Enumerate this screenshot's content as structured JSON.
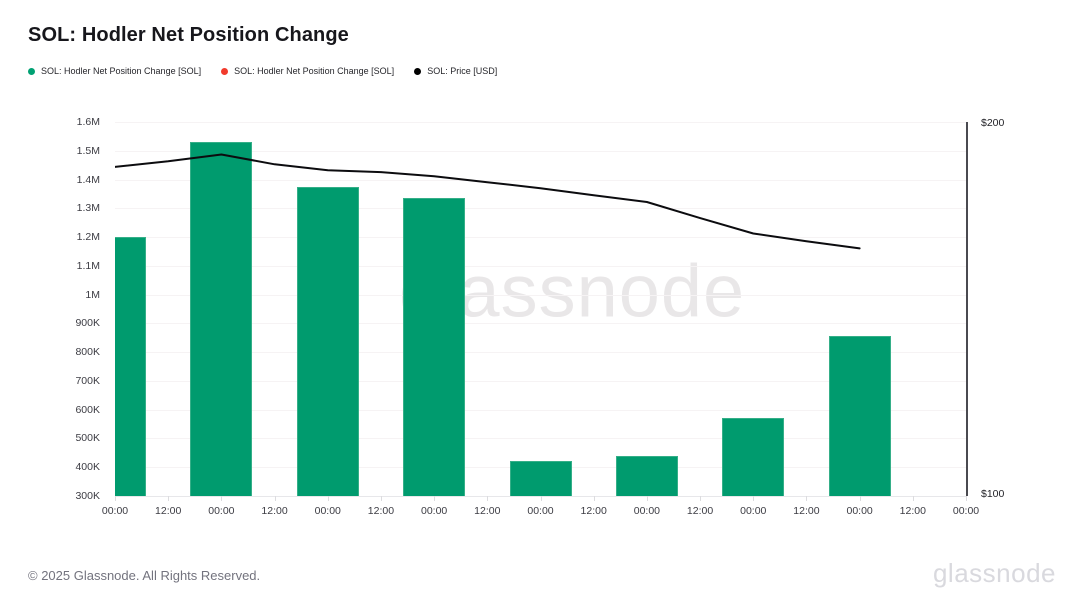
{
  "header": {
    "title": "SOL: Hodler Net Position Change"
  },
  "legend": [
    {
      "label": "SOL: Hodler Net Position Change [SOL]",
      "color": "#00a173",
      "shape": "dot"
    },
    {
      "label": "SOL: Hodler Net Position Change [SOL]",
      "color": "#f13a2c",
      "shape": "dot"
    },
    {
      "label": "SOL: Price [USD]",
      "color": "#000000",
      "shape": "dot"
    }
  ],
  "watermark": "glassnode",
  "chart_data": {
    "type": "bar",
    "title": "SOL: Hodler Net Position Change",
    "x_tick_labels": [
      "00:00",
      "12:00",
      "00:00",
      "12:00",
      "00:00",
      "12:00",
      "00:00",
      "12:00",
      "00:00",
      "12:00",
      "00:00",
      "12:00",
      "00:00",
      "12:00",
      "00:00",
      "12:00",
      "00:00"
    ],
    "left_axis": {
      "tick_labels": [
        "1.6M",
        "1.5M",
        "1.4M",
        "1.3M",
        "1.2M",
        "1.1M",
        "1M",
        "900K",
        "800K",
        "700K",
        "600K",
        "500K",
        "400K",
        "300K"
      ],
      "min": 300000,
      "max": 1600000,
      "grid": true
    },
    "right_axis": {
      "tick_labels": [
        "$200",
        "$100"
      ],
      "min": 100,
      "max": 200,
      "grid": false
    },
    "series": [
      {
        "name": "SOL: Hodler Net Position Change [SOL]",
        "type": "bar",
        "color": "#009b6e",
        "axis": "left",
        "tick_indices": [
          0,
          2,
          4,
          6,
          8,
          10,
          12,
          14
        ],
        "values": [
          1200000,
          1530000,
          1375000,
          1335000,
          420000,
          440000,
          570000,
          855000
        ]
      },
      {
        "name": "SOL: Hodler Net Position Change [SOL]",
        "type": "bar",
        "color": "#f13a2c",
        "axis": "left",
        "tick_indices": [],
        "values": []
      },
      {
        "name": "SOL: Price [USD]",
        "type": "line",
        "color": "#0c0c0f",
        "axis": "right",
        "tick_indices": [
          0,
          1,
          2,
          3,
          4,
          5,
          6,
          7,
          8,
          9,
          10,
          11,
          12,
          13,
          14
        ],
        "values": [
          188.0,
          189.5,
          191.3,
          188.7,
          187.1,
          186.6,
          185.5,
          183.9,
          182.3,
          180.4,
          178.6,
          174.3,
          170.2,
          168.1,
          166.2
        ]
      }
    ],
    "legend_position": "top-left"
  },
  "footer": {
    "copyright": "© 2025 Glassnode. All Rights Reserved.",
    "brand": "glassnode"
  }
}
